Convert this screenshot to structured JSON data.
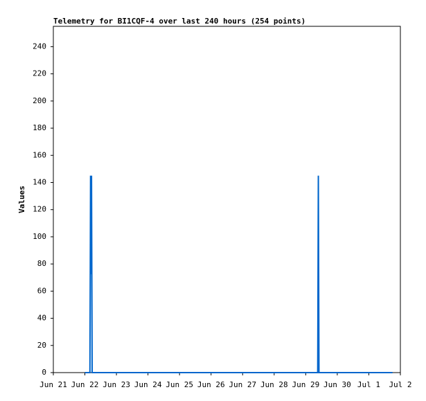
{
  "chart_data": {
    "type": "line",
    "title": "Telemetry for BI1CQF-4 over last 240 hours (254 points)",
    "y_label": "Values",
    "x": [
      1.0,
      1.16,
      1.17,
      1.18,
      1.19,
      1.2,
      1.21,
      1.22,
      1.23,
      8.38,
      8.39,
      8.4,
      8.41,
      8.42,
      10.75
    ],
    "series": [
      {
        "name": "Values",
        "color": "#0066cc",
        "values": [
          0,
          0,
          73,
          145,
          73,
          73,
          145,
          73,
          0,
          0,
          73,
          145,
          73,
          0,
          0
        ]
      }
    ],
    "xlim": [
      0,
      11
    ],
    "xticks": [
      {
        "value": 0,
        "label": "Jun 21"
      },
      {
        "value": 1,
        "label": "Jun 22"
      },
      {
        "value": 2,
        "label": "Jun 23"
      },
      {
        "value": 3,
        "label": "Jun 24"
      },
      {
        "value": 4,
        "label": "Jun 25"
      },
      {
        "value": 5,
        "label": "Jun 26"
      },
      {
        "value": 6,
        "label": "Jun 27"
      },
      {
        "value": 7,
        "label": "Jun 28"
      },
      {
        "value": 8,
        "label": "Jun 29"
      },
      {
        "value": 9,
        "label": "Jun 30"
      },
      {
        "value": 10,
        "label": "Jul 1"
      },
      {
        "value": 11,
        "label": "Jul 2"
      }
    ],
    "ylim": [
      0,
      255
    ],
    "yticks": [
      0,
      20,
      40,
      60,
      80,
      100,
      120,
      140,
      160,
      180,
      200,
      220,
      240
    ]
  }
}
